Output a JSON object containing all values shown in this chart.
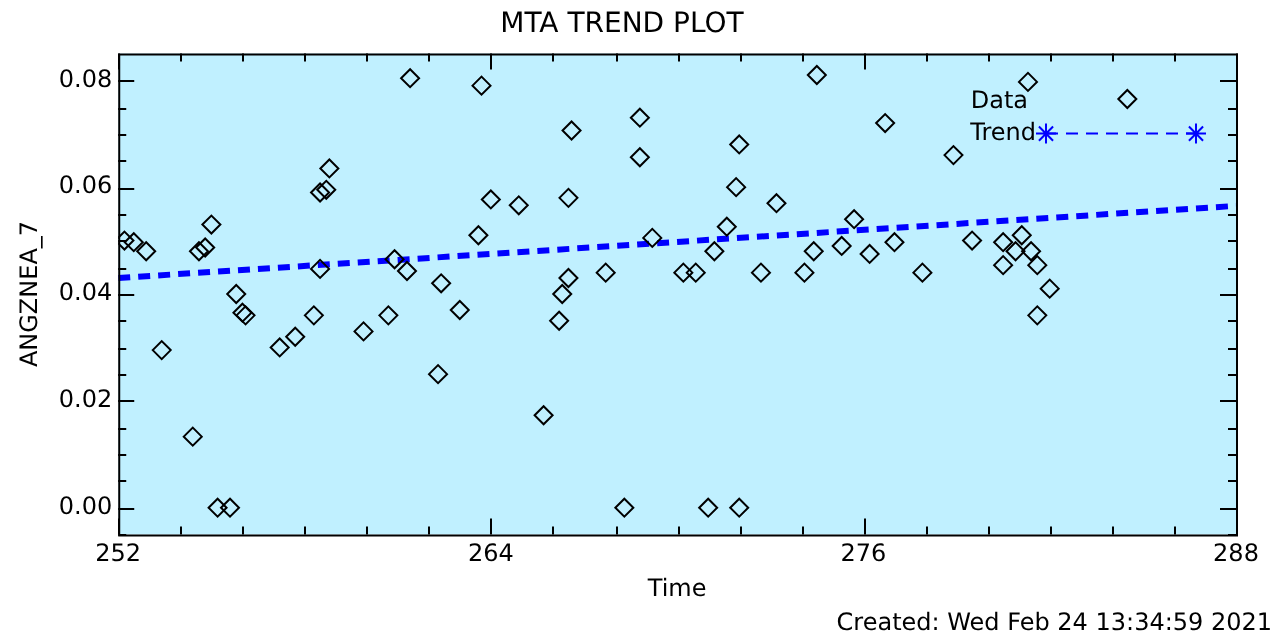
{
  "chart_data": {
    "type": "scatter",
    "title": "MTA TREND PLOT",
    "xlabel": "Time",
    "ylabel": "ANGZNEA_7",
    "annotations": [
      "Created: Wed Feb 24 13:34:59 2021"
    ],
    "xlim": [
      252,
      288
    ],
    "xticks": [
      252,
      264,
      276,
      288
    ],
    "ylim": [
      -0.005,
      0.085
    ],
    "yticks": [
      {
        "value": 0,
        "label": "0.00"
      },
      {
        "value": 0.02,
        "label": "0.02"
      },
      {
        "value": 0.04,
        "label": "0.04"
      },
      {
        "value": 0.06,
        "label": "0.06"
      },
      {
        "value": 0.08,
        "label": "0.08"
      }
    ],
    "grid": false,
    "legend": "top right",
    "series": [
      {
        "name": "Data",
        "marker": "diamond",
        "color": "#000000",
        "x": [
          252.2,
          252.5,
          252.9,
          253.4,
          254.4,
          254.6,
          254.8,
          255.0,
          255.2,
          255.6,
          255.8,
          256.0,
          256.1,
          257.2,
          257.7,
          258.3,
          258.5,
          258.5,
          258.7,
          258.8,
          259.9,
          260.7,
          260.9,
          261.3,
          261.4,
          262.3,
          262.4,
          263.0,
          263.6,
          263.7,
          264.0,
          264.9,
          265.7,
          266.2,
          266.3,
          266.5,
          266.5,
          266.6,
          267.7,
          268.3,
          268.8,
          268.8,
          269.2,
          270.2,
          270.6,
          271.0,
          271.2,
          271.6,
          271.9,
          272.0,
          272.0,
          272.7,
          273.2,
          274.1,
          274.4,
          274.5,
          275.3,
          275.7,
          276.2,
          276.7,
          277.0,
          277.9,
          278.9,
          279.5,
          280.5,
          280.5,
          280.9,
          281.1,
          281.3,
          281.4,
          281.6,
          281.6,
          282.0,
          284.5
        ],
        "values": [
          0.05,
          0.0497,
          0.048,
          0.0295,
          0.0133,
          0.048,
          0.0487,
          0.053,
          0,
          0,
          0.04,
          0.0365,
          0.036,
          0.03,
          0.032,
          0.036,
          0.0447,
          0.059,
          0.0595,
          0.0635,
          0.033,
          0.036,
          0.0465,
          0.0443,
          0.0804,
          0.025,
          0.042,
          0.037,
          0.051,
          0.079,
          0.0577,
          0.0566,
          0.0173,
          0.035,
          0.04,
          0.043,
          0.058,
          0.0706,
          0.044,
          0,
          0.0656,
          0.073,
          0.0505,
          0.044,
          0.044,
          0,
          0.048,
          0.0526,
          0.06,
          0.068,
          0,
          0.044,
          0.057,
          0.044,
          0.048,
          0.081,
          0.049,
          0.054,
          0.0475,
          0.072,
          0.0497,
          0.044,
          0.066,
          0.05,
          0.0497,
          0.0454,
          0.048,
          0.051,
          0.0797,
          0.048,
          0.0454,
          0.036,
          0.041,
          0.0765
        ]
      },
      {
        "name": "Trend",
        "type": "line",
        "marker": "none",
        "line_style": "dashed",
        "color": "#0000ff",
        "x": [
          252,
          288
        ],
        "values": [
          0.043,
          0.0565
        ]
      }
    ]
  }
}
